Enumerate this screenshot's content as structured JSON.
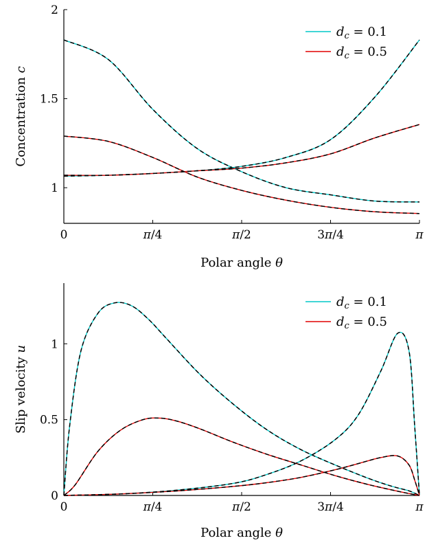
{
  "chart_data": [
    {
      "type": "line",
      "xlabel": "Polar angle θ",
      "ylabel": "Concentration c",
      "xlim": [
        0,
        3.14159
      ],
      "ylim": [
        0.8,
        2.0
      ],
      "x_ticks": [
        {
          "value": 0,
          "label": "0"
        },
        {
          "value": 0.7854,
          "label": "π/4"
        },
        {
          "value": 1.5708,
          "label": "π/2"
        },
        {
          "value": 2.3562,
          "label": "3π/4"
        },
        {
          "value": 3.14159,
          "label": "π"
        }
      ],
      "y_ticks": [
        {
          "value": 1,
          "label": "1"
        },
        {
          "value": 1.5,
          "label": "1.5"
        },
        {
          "value": 2,
          "label": "2"
        }
      ],
      "grid": false,
      "legend_position": "top-right",
      "overlay": "black dashed line over each solid curve",
      "series": [
        {
          "name": "d_c = 0.1",
          "color": "#00c8c8",
          "x": [
            0,
            0.3927,
            0.7854,
            1.1781,
            1.5708,
            1.9635,
            2.3562,
            2.7489,
            3.14159
          ],
          "y": [
            1.83,
            1.72,
            1.44,
            1.22,
            1.09,
            1.0,
            0.96,
            0.925,
            0.92
          ]
        },
        {
          "name": "d_c = 0.5",
          "color": "#e00000",
          "x": [
            0,
            0.3927,
            0.7854,
            1.1781,
            1.5708,
            1.9635,
            2.3562,
            2.7489,
            3.14159
          ],
          "y": [
            1.29,
            1.26,
            1.17,
            1.06,
            0.985,
            0.93,
            0.89,
            0.865,
            0.855
          ]
        },
        {
          "name": "",
          "color": "#00c8c8",
          "x": [
            0,
            0.3927,
            0.7854,
            1.1781,
            1.5708,
            1.9635,
            2.3562,
            2.7489,
            3.14159
          ],
          "y": [
            1.065,
            1.07,
            1.08,
            1.095,
            1.12,
            1.17,
            1.27,
            1.51,
            1.83
          ]
        },
        {
          "name": "",
          "color": "#e00000",
          "x": [
            0,
            0.3927,
            0.7854,
            1.1781,
            1.5708,
            1.9635,
            2.3562,
            2.7489,
            3.14159
          ],
          "y": [
            1.07,
            1.07,
            1.08,
            1.095,
            1.11,
            1.14,
            1.19,
            1.28,
            1.355
          ]
        }
      ]
    },
    {
      "type": "line",
      "xlabel": "Polar angle θ",
      "ylabel": "Slip velocity u",
      "xlim": [
        0,
        3.14159
      ],
      "ylim": [
        0,
        1.4
      ],
      "x_ticks": [
        {
          "value": 0,
          "label": "0"
        },
        {
          "value": 0.7854,
          "label": "π/4"
        },
        {
          "value": 1.5708,
          "label": "π/2"
        },
        {
          "value": 2.3562,
          "label": "3π/4"
        },
        {
          "value": 3.14159,
          "label": "π"
        }
      ],
      "y_ticks": [
        {
          "value": 0,
          "label": "0"
        },
        {
          "value": 0.5,
          "label": "0.5"
        },
        {
          "value": 1,
          "label": "1"
        }
      ],
      "grid": false,
      "legend_position": "top-right",
      "overlay": "black dashed line over each solid curve",
      "series": [
        {
          "name": "d_c = 0.1",
          "color": "#00c8c8",
          "x": [
            0,
            0.05,
            0.15,
            0.3,
            0.45,
            0.6,
            0.75,
            0.9,
            1.2,
            1.5,
            1.8,
            2.1,
            2.4,
            2.7,
            2.9,
            3.05,
            3.14159
          ],
          "y": [
            0,
            0.45,
            0.95,
            1.2,
            1.27,
            1.25,
            1.16,
            1.04,
            0.8,
            0.6,
            0.43,
            0.3,
            0.2,
            0.11,
            0.06,
            0.03,
            0
          ]
        },
        {
          "name": "d_c = 0.5",
          "color": "#e00000",
          "x": [
            0,
            0.1,
            0.3,
            0.5,
            0.7,
            0.85,
            1.0,
            1.2,
            1.5,
            1.8,
            2.1,
            2.4,
            2.7,
            3.0,
            3.14159
          ],
          "y": [
            0,
            0.07,
            0.29,
            0.43,
            0.5,
            0.51,
            0.49,
            0.44,
            0.35,
            0.27,
            0.2,
            0.13,
            0.07,
            0.02,
            0
          ]
        },
        {
          "name": "",
          "color": "#00c8c8",
          "x": [
            0,
            0.5,
            1.0,
            1.5,
            1.8,
            2.1,
            2.4,
            2.6,
            2.8,
            2.95,
            3.05,
            3.1,
            3.14159
          ],
          "y": [
            0,
            0.01,
            0.035,
            0.08,
            0.14,
            0.23,
            0.37,
            0.53,
            0.82,
            1.07,
            0.95,
            0.45,
            0
          ]
        },
        {
          "name": "",
          "color": "#e00000",
          "x": [
            0,
            0.5,
            1.0,
            1.5,
            1.8,
            2.1,
            2.4,
            2.6,
            2.8,
            2.95,
            3.05,
            3.1,
            3.14159
          ],
          "y": [
            0,
            0.01,
            0.03,
            0.06,
            0.085,
            0.12,
            0.17,
            0.21,
            0.25,
            0.26,
            0.2,
            0.1,
            0
          ]
        }
      ]
    }
  ]
}
